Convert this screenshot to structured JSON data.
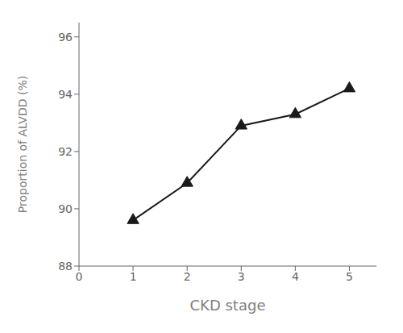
{
  "chart_data": {
    "type": "line",
    "xlabel": "CKD  stage",
    "ylabel": "Proportion of ALVDD (%)",
    "x": [
      1,
      2,
      3,
      4,
      5
    ],
    "values": [
      89.6,
      90.9,
      92.9,
      93.3,
      94.2
    ],
    "xlim": [
      0,
      5.5
    ],
    "ylim": [
      88,
      96.5
    ],
    "xticks": [
      0,
      1,
      2,
      3,
      4,
      5
    ],
    "yticks": [
      88,
      90,
      92,
      94,
      96
    ],
    "color": "#1a1a1a",
    "marker": "triangle",
    "grid": false
  }
}
